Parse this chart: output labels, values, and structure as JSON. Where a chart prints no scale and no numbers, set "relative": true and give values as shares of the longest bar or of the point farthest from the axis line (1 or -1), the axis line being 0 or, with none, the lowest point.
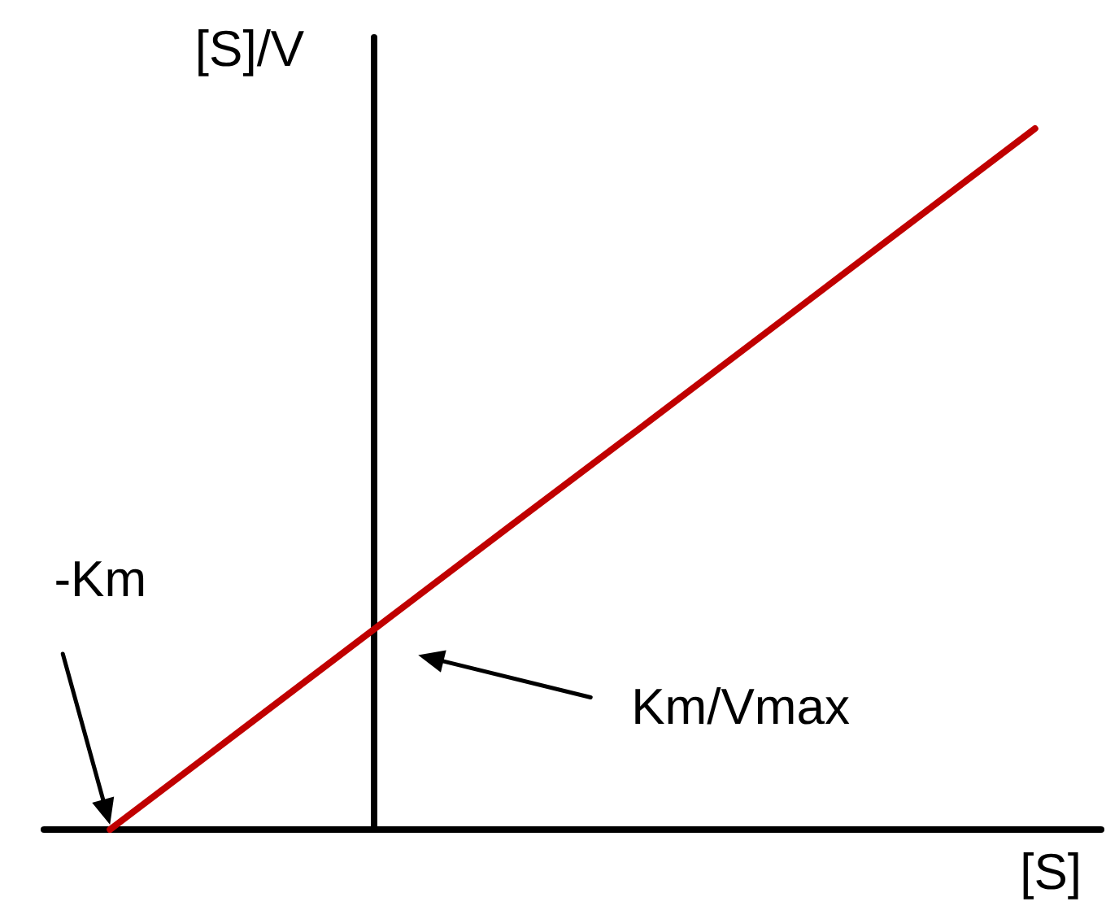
{
  "chart_data": {
    "type": "line",
    "relative": true,
    "xlabel": "[S]",
    "ylabel": "[S]/V",
    "categories": [
      null,
      null,
      null,
      null,
      null,
      null,
      null,
      null
    ],
    "series": [
      {
        "color": "#c00000",
        "values": [
          0,
          0.143,
          0.286,
          0.429,
          0.571,
          0.714,
          0.857,
          1
        ]
      }
    ],
    "annotations": [
      "-Km",
      "Km/Vmax"
    ]
  }
}
